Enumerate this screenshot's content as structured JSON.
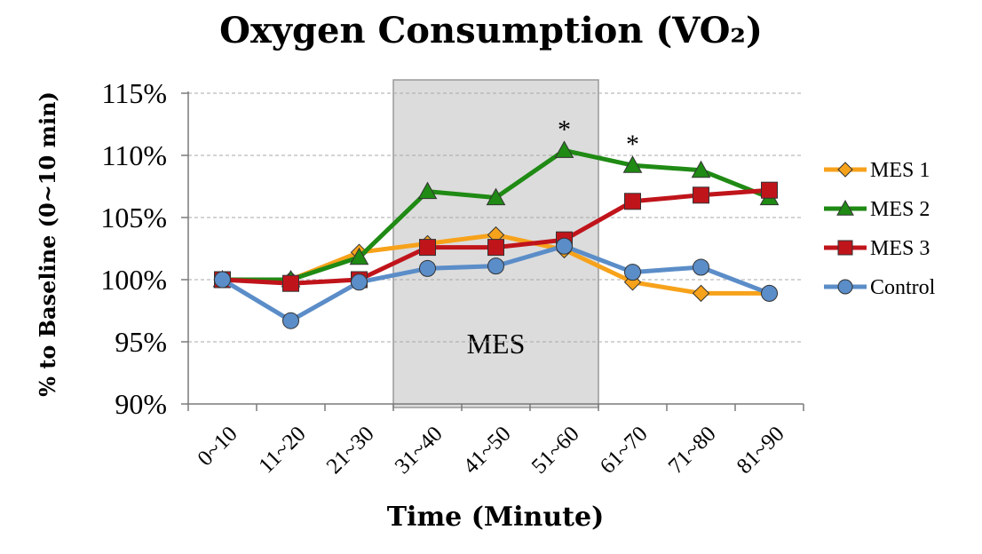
{
  "chart_data": {
    "type": "line",
    "title": "Oxygen Consumption (VO₂)",
    "xlabel": "Time (Minute)",
    "ylabel": "% to Baseline (0~10 min)",
    "categories": [
      "0~10",
      "11~20",
      "21~30",
      "31~40",
      "41~50",
      "51~60",
      "61~70",
      "71~80",
      "81~90"
    ],
    "ylim": [
      90,
      115
    ],
    "yticks": [
      90,
      95,
      100,
      105,
      110,
      115
    ],
    "ytick_suffix": "%",
    "grid": "horizontal dashed",
    "legend_position": "right",
    "shaded_region": {
      "label": "MES",
      "from_category": "31~40",
      "to_category": "51~60"
    },
    "significance_markers": [
      {
        "category": "51~60",
        "text": "*"
      },
      {
        "category": "61~70",
        "text": "*"
      }
    ],
    "series": [
      {
        "name": "MES 1",
        "color": "#F7A21B",
        "marker": "diamond",
        "values": [
          100.0,
          100.0,
          102.2,
          102.9,
          103.6,
          102.4,
          99.8,
          98.9,
          98.9
        ]
      },
      {
        "name": "MES 2",
        "color": "#1F8A14",
        "marker": "triangle",
        "values": [
          100.0,
          100.0,
          101.8,
          107.1,
          106.6,
          110.4,
          109.2,
          108.8,
          106.6
        ]
      },
      {
        "name": "MES 3",
        "color": "#C0141B",
        "marker": "square",
        "values": [
          100.0,
          99.7,
          100.0,
          102.6,
          102.6,
          103.2,
          106.3,
          106.8,
          107.2
        ]
      },
      {
        "name": "Control",
        "color": "#5B8DC8",
        "marker": "circle",
        "values": [
          100.0,
          96.7,
          99.8,
          100.9,
          101.1,
          102.7,
          100.6,
          101.0,
          98.9
        ]
      }
    ]
  }
}
